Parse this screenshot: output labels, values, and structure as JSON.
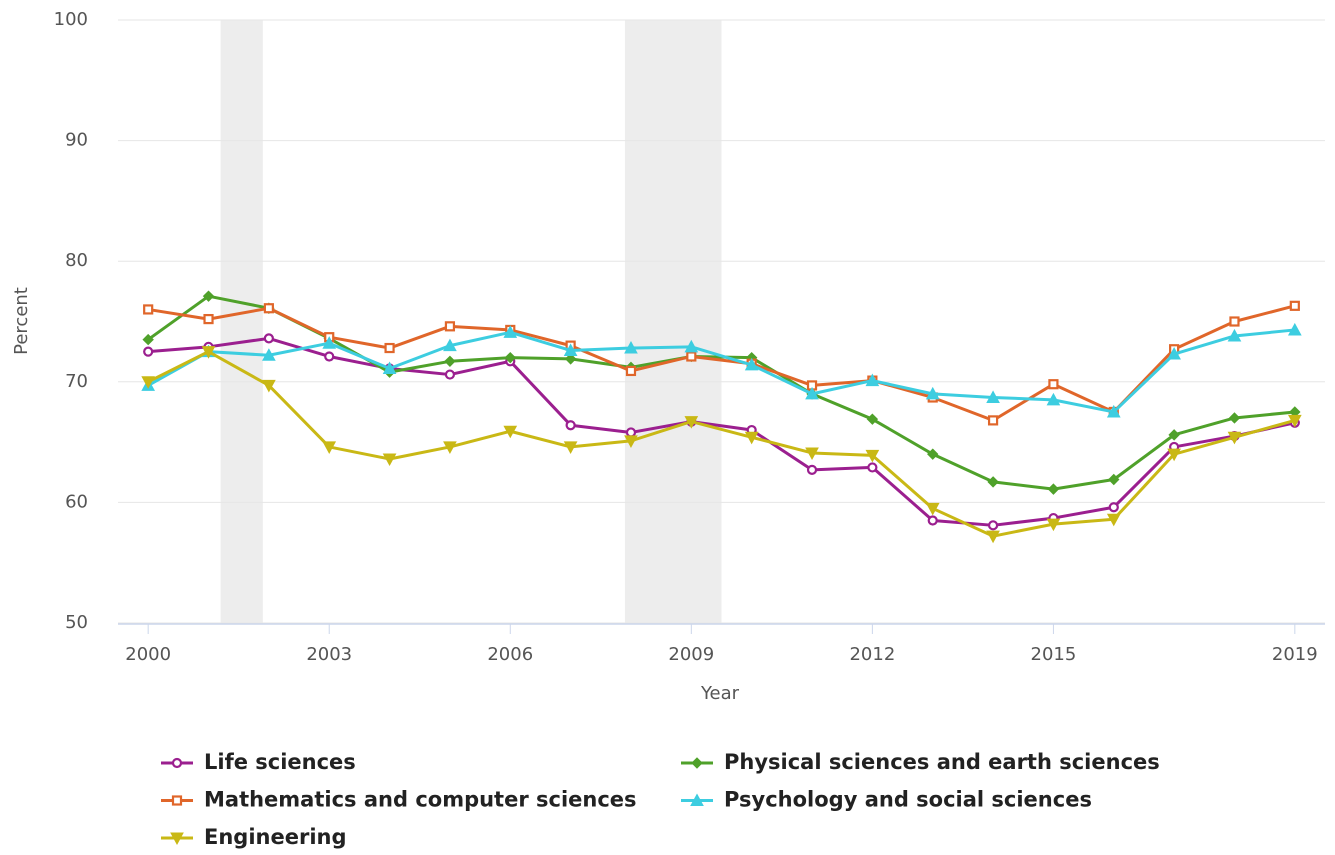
{
  "chart_data": {
    "type": "line",
    "x_label": "Year",
    "y_label": "Percent",
    "x": [
      2000,
      2001,
      2002,
      2003,
      2004,
      2005,
      2006,
      2007,
      2008,
      2009,
      2010,
      2011,
      2012,
      2013,
      2014,
      2015,
      2016,
      2017,
      2018,
      2019
    ],
    "xlim": [
      1999.5,
      2019.5
    ],
    "xticks": [
      2000,
      2003,
      2006,
      2009,
      2012,
      2015,
      2019
    ],
    "ylim": [
      50,
      100
    ],
    "yticks": [
      50,
      60,
      70,
      80,
      90,
      100
    ],
    "grid": true,
    "shaded_ranges": [
      [
        2001.2,
        2001.9
      ],
      [
        2007.9,
        2009.5
      ]
    ],
    "series": [
      {
        "name": "Life sciences",
        "color": "#9b1f8f",
        "marker": "circle",
        "values": [
          72.5,
          72.9,
          73.6,
          72.1,
          71.1,
          70.6,
          71.7,
          66.4,
          65.8,
          66.7,
          66.0,
          62.7,
          62.9,
          58.5,
          58.1,
          58.7,
          59.6,
          64.6,
          65.5,
          66.6
        ]
      },
      {
        "name": "Physical sciences and earth sciences",
        "color": "#4fa12a",
        "marker": "diamond",
        "values": [
          73.5,
          77.1,
          76.1,
          73.6,
          70.8,
          71.7,
          72.0,
          71.9,
          71.2,
          72.1,
          72.0,
          69.0,
          66.9,
          64.0,
          61.7,
          61.1,
          61.9,
          65.6,
          67.0,
          67.5
        ]
      },
      {
        "name": "Mathematics and computer sciences",
        "color": "#e0662a",
        "marker": "square",
        "values": [
          76.0,
          75.2,
          76.1,
          73.7,
          72.8,
          74.6,
          74.3,
          73.0,
          70.9,
          72.1,
          71.5,
          69.7,
          70.1,
          68.7,
          66.8,
          69.8,
          67.5,
          72.7,
          75.0,
          76.3
        ]
      },
      {
        "name": "Psychology and social sciences",
        "color": "#3dcde0",
        "marker": "triangle",
        "values": [
          69.7,
          72.5,
          72.2,
          73.2,
          71.1,
          73.0,
          74.1,
          72.6,
          72.8,
          72.9,
          71.4,
          69.0,
          70.1,
          69.0,
          68.7,
          68.5,
          67.5,
          72.3,
          73.8,
          74.3
        ]
      },
      {
        "name": "Engineering",
        "color": "#c9b815",
        "marker": "triangle-down",
        "values": [
          70.0,
          72.5,
          69.7,
          64.6,
          63.6,
          64.6,
          65.9,
          64.6,
          65.1,
          66.7,
          65.4,
          64.1,
          63.9,
          59.5,
          57.2,
          58.2,
          58.6,
          64.0,
          65.4,
          66.8
        ]
      }
    ]
  }
}
